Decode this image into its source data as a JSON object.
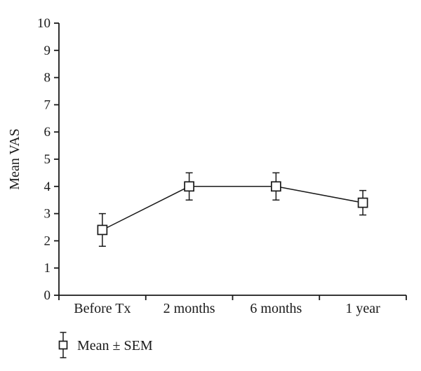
{
  "figure": {
    "background": "#ffffff",
    "line_color": "#1a1a1a",
    "marker_fill": "#ffffff"
  },
  "chart_data": {
    "type": "line",
    "title": "",
    "xlabel": "",
    "ylabel": "Mean VAS",
    "categories": [
      "Before Tx",
      "2 months",
      "6 months",
      "1 year"
    ],
    "series": [
      {
        "name": "Mean ± SEM",
        "values": [
          2.4,
          4.0,
          4.0,
          3.4
        ],
        "sem": [
          0.6,
          0.5,
          0.5,
          0.45
        ]
      }
    ],
    "error_type": "SEM",
    "marker": "open-square",
    "ylim": [
      0,
      10
    ],
    "ytick_step": 1,
    "ytick_labels": [
      "0",
      "1",
      "2",
      "3",
      "4",
      "5",
      "6",
      "7",
      "8",
      "9",
      "10"
    ],
    "grid": false,
    "legend_position": "bottom-left"
  }
}
